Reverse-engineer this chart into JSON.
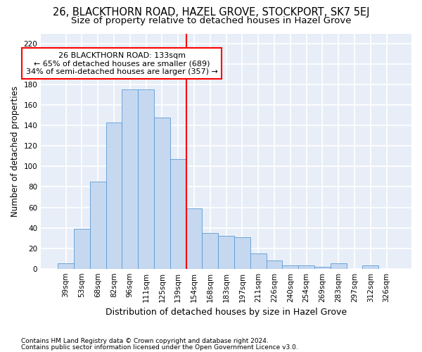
{
  "title": "26, BLACKTHORN ROAD, HAZEL GROVE, STOCKPORT, SK7 5EJ",
  "subtitle": "Size of property relative to detached houses in Hazel Grove",
  "xlabel": "Distribution of detached houses by size in Hazel Grove",
  "ylabel": "Number of detached properties",
  "footnote1": "Contains HM Land Registry data © Crown copyright and database right 2024.",
  "footnote2": "Contains public sector information licensed under the Open Government Licence v3.0.",
  "annotation_title": "26 BLACKTHORN ROAD: 133sqm",
  "annotation_line1": "← 65% of detached houses are smaller (689)",
  "annotation_line2": "34% of semi-detached houses are larger (357) →",
  "bar_labels": [
    "39sqm",
    "53sqm",
    "68sqm",
    "82sqm",
    "96sqm",
    "111sqm",
    "125sqm",
    "139sqm",
    "154sqm",
    "168sqm",
    "183sqm",
    "197sqm",
    "211sqm",
    "226sqm",
    "240sqm",
    "254sqm",
    "269sqm",
    "283sqm",
    "297sqm",
    "312sqm",
    "326sqm"
  ],
  "bar_values": [
    5,
    39,
    85,
    143,
    175,
    175,
    148,
    107,
    59,
    35,
    32,
    31,
    15,
    8,
    3,
    3,
    2,
    5,
    0,
    3,
    0
  ],
  "bar_color": "#c5d8f0",
  "bar_edge_color": "#5b9bd5",
  "vline_color": "red",
  "vline_x_idx": 7,
  "ylim": [
    0,
    230
  ],
  "yticks": [
    0,
    20,
    40,
    60,
    80,
    100,
    120,
    140,
    160,
    180,
    200,
    220
  ],
  "background_color": "#e8eef8",
  "grid_color": "white",
  "annotation_box_facecolor": "white",
  "annotation_box_edgecolor": "red",
  "title_fontsize": 10.5,
  "subtitle_fontsize": 9.5,
  "xlabel_fontsize": 9,
  "ylabel_fontsize": 8.5,
  "tick_fontsize": 7.5,
  "annotation_fontsize": 8,
  "footnote_fontsize": 6.5
}
